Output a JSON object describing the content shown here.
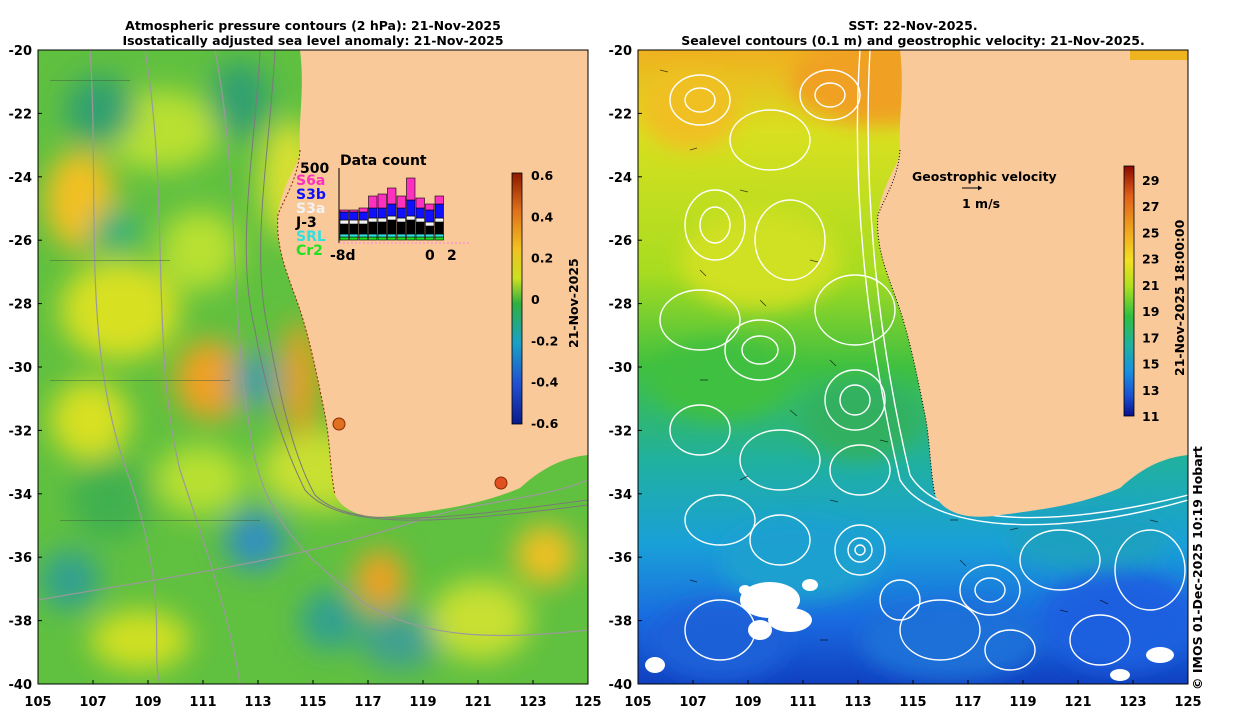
{
  "left_panel": {
    "title_line1": "Atmospheric pressure contours (2 hPa): 21-Nov-2025",
    "title_line2": "Isostatically adjusted sea level anomaly: 21-Nov-2025",
    "colorbar": {
      "label": "21-Nov-2025",
      "ticks": [
        "0.6",
        "0.4",
        "0.2",
        "0",
        "-0.2",
        "-0.4",
        "-0.6"
      ],
      "colors": [
        "#8b1a00",
        "#e0701a",
        "#f2c020",
        "#cce020",
        "#30b040",
        "#1aa0c8",
        "#2050d0",
        "#0a1a8c"
      ]
    },
    "data_count": {
      "title": "Data count",
      "max_label": "500",
      "x_labels": [
        "-8d",
        "0",
        "2"
      ],
      "satellites": [
        {
          "name": "S6a",
          "color": "#ff30c0"
        },
        {
          "name": "S3b",
          "color": "#1010ff"
        },
        {
          "name": "S3a",
          "color": "#f2f2f2"
        },
        {
          "name": "J-3",
          "color": "#000000"
        },
        {
          "name": "SRL",
          "color": "#30e0e0"
        },
        {
          "name": "Cr2",
          "color": "#20e020"
        }
      ]
    }
  },
  "right_panel": {
    "title_line1": "SST: 22-Nov-2025.",
    "title_line2": "Sealevel contours (0.1 m) and geostrophic velocity: 21-Nov-2025.",
    "legend_title": "Geostrophic velocity",
    "legend_scale": "1 m/s",
    "colorbar": {
      "label": "21-Nov-2025 18:00:00",
      "ticks": [
        "29",
        "27",
        "25",
        "23",
        "21",
        "19",
        "17",
        "15",
        "13",
        "11"
      ],
      "colors": [
        "#8b0a00",
        "#e0601a",
        "#f2b020",
        "#f2e020",
        "#b0e020",
        "#30c040",
        "#20b0a0",
        "#1a90e0",
        "#1a50d0",
        "#0a108c"
      ]
    }
  },
  "axes": {
    "lat_labels": [
      "-20",
      "-22",
      "-24",
      "-26",
      "-28",
      "-30",
      "-32",
      "-34",
      "-36",
      "-38",
      "-40"
    ],
    "lon_labels": [
      "105",
      "107",
      "109",
      "111",
      "113",
      "115",
      "117",
      "119",
      "121",
      "123",
      "125"
    ]
  },
  "copyright": "© IMOS 01-Dec-2025 10:19 Hobart",
  "colors": {
    "land": "#f9c99a",
    "contour_gray": "#9a9a9a",
    "sst_contour": "#ffffff"
  }
}
